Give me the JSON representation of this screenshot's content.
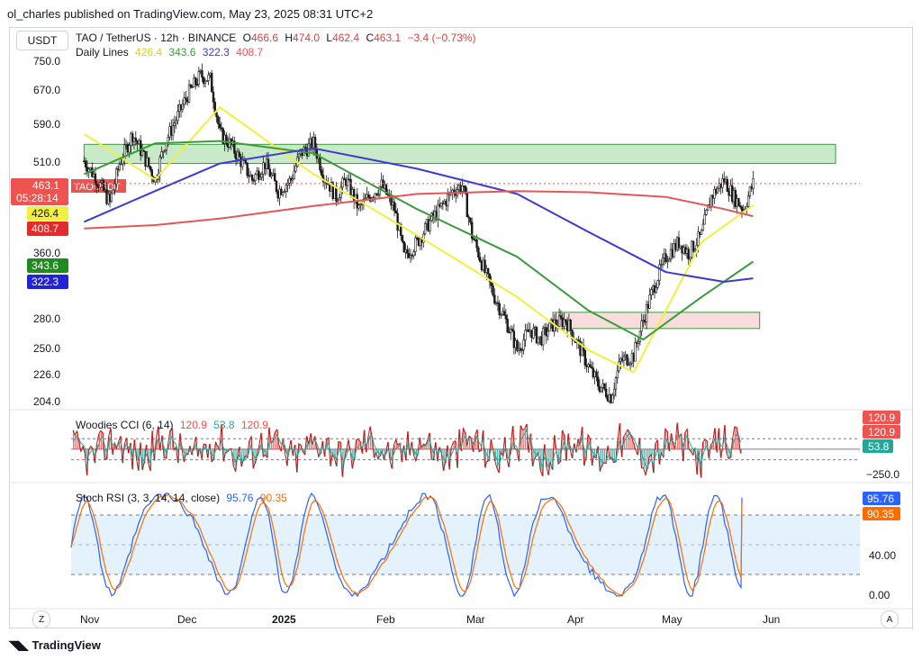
{
  "publisher_line": "ol_charles published on TradingView.com, May 23, 2025 08:31 UTC+2",
  "currency": "USDT",
  "legend": {
    "symbol": "TAO / TetherUS · 12h · BINANCE",
    "o_label": "O",
    "o": "466.6",
    "h_label": "H",
    "h": "474.0",
    "l_label": "L",
    "l": "462.4",
    "c_label": "C",
    "c": "463.1",
    "change": "−3.4 (−0.73%)",
    "ma_label": "Daily Lines",
    "ma_values": [
      "426.4",
      "343.6",
      "322.3",
      "408.7"
    ]
  },
  "colors": {
    "yellow": "#f2ef3e",
    "green": "#3c9a3c",
    "blue": "#3b3bd1",
    "red": "#e35757",
    "up": "#26a69a",
    "down": "#ef5350",
    "candle": "#1a1a1a",
    "zone_green": "#bfe6bf",
    "zone_pink": "#f8d7d7"
  },
  "price_axis": [
    "750.0",
    "670.0",
    "590.0",
    "510.0",
    "463.1",
    "05:28:14",
    "426.4",
    "408.7",
    "360.0",
    "343.6",
    "322.3",
    "280.0",
    "250.0",
    "226.0",
    "204.0"
  ],
  "price_tag": "TAOUSDT",
  "time_axis": [
    "Nov",
    "Dec",
    "2025",
    "Feb",
    "Mar",
    "Apr",
    "May",
    "Jun"
  ],
  "cci": {
    "label": "Woodies CCI (6, 14)",
    "values": [
      "120.9",
      "53.8",
      "120.9"
    ],
    "axis_tags": [
      "120.9",
      "120.9",
      "53.8",
      "−250.0"
    ]
  },
  "stoch": {
    "label": "Stoch RSI (3, 3, 14, 14, close)",
    "k": "95.76",
    "d": "90.35",
    "axis": [
      "95.76",
      "90.35",
      "40.00",
      "0.00"
    ]
  },
  "corner_left": "Z",
  "corner_right": "A",
  "brand": "TradingView",
  "chart_data": {
    "type": "candlestick",
    "symbol": "TAO / TetherUS",
    "interval": "12h",
    "ylim": [
      195,
      760
    ],
    "y_scale": "log",
    "price_close_series": [
      [
        "2024-10-28",
        505
      ],
      [
        "2024-11-01",
        470
      ],
      [
        "2024-11-05",
        430
      ],
      [
        "2024-11-08",
        500
      ],
      [
        "2024-11-12",
        560
      ],
      [
        "2024-11-15",
        520
      ],
      [
        "2024-11-19",
        470
      ],
      [
        "2024-11-22",
        540
      ],
      [
        "2024-11-26",
        600
      ],
      [
        "2024-11-29",
        650
      ],
      [
        "2024-12-03",
        700
      ],
      [
        "2024-12-06",
        690
      ],
      [
        "2024-12-09",
        560
      ],
      [
        "2024-12-12",
        540
      ],
      [
        "2024-12-16",
        500
      ],
      [
        "2024-12-19",
        470
      ],
      [
        "2024-12-23",
        500
      ],
      [
        "2024-12-27",
        450
      ],
      [
        "2024-12-31",
        470
      ],
      [
        "2025-01-03",
        520
      ],
      [
        "2025-01-07",
        540
      ],
      [
        "2025-01-10",
        480
      ],
      [
        "2025-01-14",
        440
      ],
      [
        "2025-01-17",
        470
      ],
      [
        "2025-01-21",
        420
      ],
      [
        "2025-01-24",
        440
      ],
      [
        "2025-01-28",
        460
      ],
      [
        "2025-02-01",
        420
      ],
      [
        "2025-02-04",
        350
      ],
      [
        "2025-02-08",
        370
      ],
      [
        "2025-02-12",
        400
      ],
      [
        "2025-02-15",
        420
      ],
      [
        "2025-02-19",
        450
      ],
      [
        "2025-02-22",
        460
      ],
      [
        "2025-02-25",
        380
      ],
      [
        "2025-03-01",
        330
      ],
      [
        "2025-03-04",
        300
      ],
      [
        "2025-03-08",
        270
      ],
      [
        "2025-03-11",
        245
      ],
      [
        "2025-03-15",
        265
      ],
      [
        "2025-03-18",
        255
      ],
      [
        "2025-03-22",
        270
      ],
      [
        "2025-03-26",
        275
      ],
      [
        "2025-03-29",
        255
      ],
      [
        "2025-04-02",
        230
      ],
      [
        "2025-04-05",
        215
      ],
      [
        "2025-04-09",
        205
      ],
      [
        "2025-04-12",
        235
      ],
      [
        "2025-04-16",
        240
      ],
      [
        "2025-04-19",
        275
      ],
      [
        "2025-04-23",
        320
      ],
      [
        "2025-04-26",
        350
      ],
      [
        "2025-04-30",
        370
      ],
      [
        "2025-05-03",
        355
      ],
      [
        "2025-05-07",
        380
      ],
      [
        "2025-05-10",
        440
      ],
      [
        "2025-05-14",
        470
      ],
      [
        "2025-05-17",
        440
      ],
      [
        "2025-05-20",
        420
      ],
      [
        "2025-05-23",
        463.1
      ]
    ],
    "moving_averages": [
      {
        "name": "",
        "color": "yellow",
        "x": [
          "2024-10-28",
          "2024-11-19",
          "2024-12-09",
          "2025-01-07",
          "2025-02-08",
          "2025-03-11",
          "2025-04-02",
          "2025-04-16",
          "2025-05-07",
          "2025-05-23"
        ],
        "values": [
          560,
          470,
          620,
          480,
          380,
          300,
          245,
          225,
          370,
          426.4
        ]
      },
      {
        "name": "",
        "color": "green",
        "x": [
          "2024-10-28",
          "2024-11-19",
          "2024-12-09",
          "2025-01-07",
          "2025-02-08",
          "2025-03-11",
          "2025-04-02",
          "2025-04-19",
          "2025-05-07",
          "2025-05-23"
        ],
        "values": [
          480,
          540,
          545,
          520,
          420,
          350,
          285,
          255,
          300,
          343.6
        ]
      },
      {
        "name": "",
        "color": "blue",
        "x": [
          "2024-10-28",
          "2024-11-19",
          "2024-12-09",
          "2025-01-07",
          "2025-02-08",
          "2025-03-11",
          "2025-04-02",
          "2025-04-26",
          "2025-05-14",
          "2025-05-23"
        ],
        "values": [
          400,
          450,
          500,
          530,
          490,
          445,
          385,
          330,
          318,
          322.3
        ]
      },
      {
        "name": "",
        "color": "red",
        "x": [
          "2024-10-28",
          "2024-11-19",
          "2024-12-09",
          "2025-01-07",
          "2025-02-08",
          "2025-03-11",
          "2025-04-02",
          "2025-04-26",
          "2025-05-14",
          "2025-05-23"
        ],
        "values": [
          390,
          395,
          405,
          425,
          445,
          450,
          448,
          440,
          420,
          408.7
        ]
      }
    ],
    "zones": [
      {
        "color": "zone_green",
        "x0": "2024-10-28",
        "x1": "2025-06-25",
        "y0": 500,
        "y1": 538
      },
      {
        "color": "zone_pink",
        "x0": "2025-03-22",
        "x1": "2025-05-25",
        "y0": 266,
        "y1": 283
      }
    ],
    "last_price_line": 463.1,
    "cci_ylim": [
      -300,
      350
    ],
    "cci_current": 120.9,
    "cci_signal": 53.8,
    "stoch_ylim": [
      0,
      100
    ],
    "stoch_k_current": 95.76,
    "stoch_d_current": 90.35,
    "stoch_bands": [
      80,
      50,
      20
    ]
  }
}
